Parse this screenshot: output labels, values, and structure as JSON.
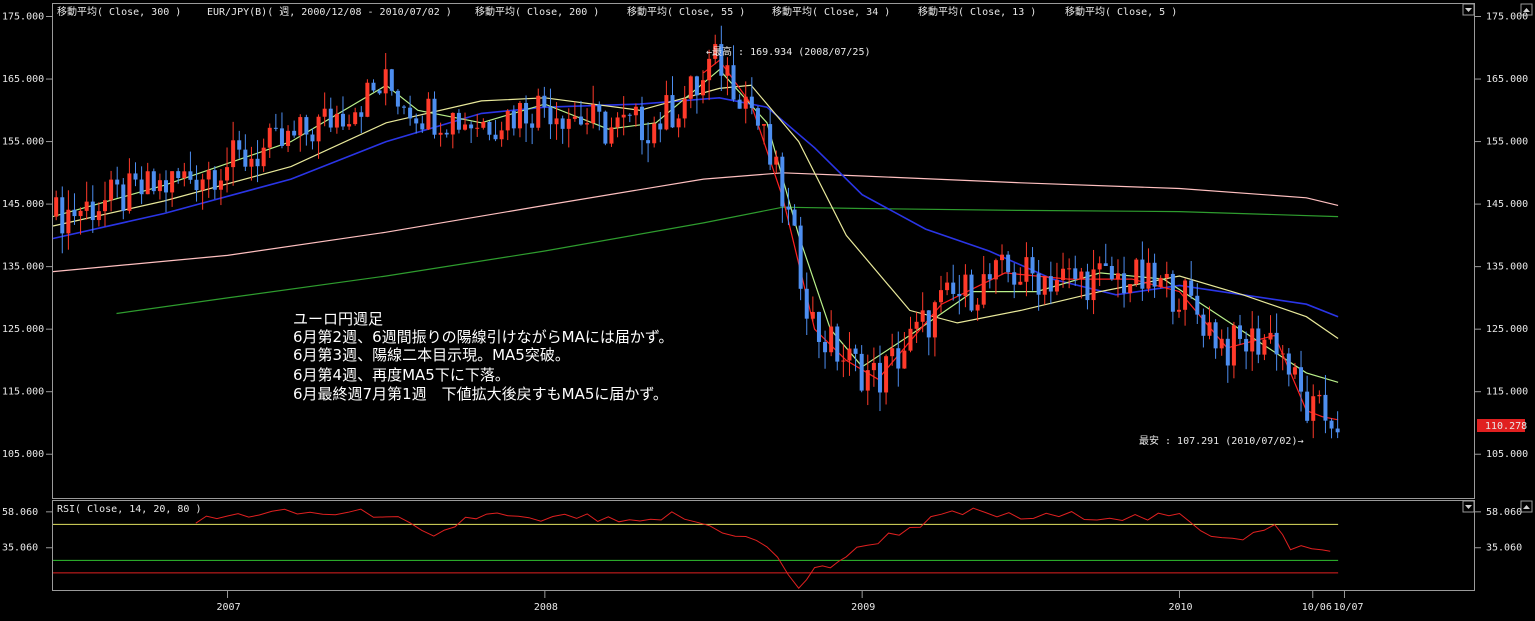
{
  "header": {
    "indicators": [
      "移動平均( Close, 300 )",
      "EUR/JPY(B)( 週, 2000/12/08 - 2010/07/02 )",
      "移動平均( Close, 200 )",
      "移動平均( Close, 55 )",
      "移動平均( Close, 34 )",
      "移動平均( Close, 13 )",
      "移動平均( Close, 5 )"
    ]
  },
  "annotations": {
    "high": "←最高 : 169.934 (2008/07/25)",
    "low": "最安 : 107.291 (2010/07/02)→",
    "last_price": "110.278",
    "note": [
      "ユーロ円週足",
      "6月第2週、6週間振りの陽線引けながらMAには届かず。",
      "6月第3週、陽線二本目示現。MA5突破。",
      "6月第4週、再度MA5下に下落。",
      "6月最終週7月第1週　下値拡大後戻すもMA5に届かず。"
    ]
  },
  "rsi": {
    "title": "RSI( Close, 14, 20, 80 )",
    "ticks": [
      "58.060",
      "35.060"
    ]
  },
  "colors": {
    "ma300": "#ffc0c0",
    "ma200": "#2e9c2e",
    "ma55": "#2a35e6",
    "ma34": "#e8e89a",
    "ma13": "#b9f08a",
    "ma5": "#ff2020",
    "up": "#ff3a2a",
    "down": "#4d8ef0",
    "rsi": "#e02020",
    "rsi_high": "#e0e060",
    "rsi_mid": "#30c030",
    "rsi_low": "#e02020"
  },
  "chart_data": [
    {
      "type": "candlestick",
      "x_labels": [
        "2007",
        "2008",
        "2009",
        "2010",
        "10/06",
        "10/07"
      ],
      "y_ticks": [
        "175.000",
        "165.000",
        "155.000",
        "145.000",
        "135.000",
        "125.000",
        "115.000",
        "105.000"
      ],
      "ylim": [
        98,
        177
      ],
      "high": 169.934,
      "low": 107.291,
      "last": 110.278,
      "series": [
        {
          "name": "移動平均( Close, 300 )",
          "x": [
            2006.45,
            2007.0,
            2007.5,
            2008.0,
            2008.5,
            2008.75,
            2009.0,
            2009.5,
            2010.0,
            2010.4,
            2010.5
          ],
          "values": [
            134.2,
            136.8,
            140.5,
            144.8,
            149.0,
            150.0,
            149.5,
            148.4,
            147.5,
            146.0,
            144.8
          ]
        },
        {
          "name": "移動平均( Close, 200 )",
          "x": [
            2006.65,
            2007.0,
            2007.5,
            2008.0,
            2008.5,
            2008.75,
            2009.0,
            2009.5,
            2010.0,
            2010.5
          ],
          "values": [
            127.5,
            130.0,
            133.5,
            137.5,
            142.0,
            144.5,
            144.3,
            144.0,
            143.8,
            143.0
          ]
        },
        {
          "name": "移動平均( Close, 55 )",
          "x": [
            2006.45,
            2006.8,
            2007.2,
            2007.5,
            2007.8,
            2008.0,
            2008.3,
            2008.55,
            2008.7,
            2008.85,
            2009.0,
            2009.2,
            2009.4,
            2009.6,
            2009.8,
            2010.0,
            2010.2,
            2010.4,
            2010.5
          ],
          "values": [
            139.5,
            143.5,
            149.0,
            155.0,
            159.5,
            160.5,
            161.0,
            162.0,
            160.5,
            154.0,
            146.5,
            141.0,
            137.5,
            133.0,
            130.5,
            132.0,
            130.5,
            129.0,
            127.0
          ]
        },
        {
          "name": "移動平均( Close, 34 )",
          "x": [
            2006.45,
            2006.8,
            2007.2,
            2007.5,
            2007.8,
            2008.0,
            2008.3,
            2008.55,
            2008.65,
            2008.8,
            2008.95,
            2009.15,
            2009.3,
            2009.5,
            2009.75,
            2010.0,
            2010.2,
            2010.4,
            2010.5
          ],
          "values": [
            141.5,
            145.5,
            151.0,
            158.0,
            161.5,
            162.0,
            160.0,
            163.5,
            164.0,
            155.0,
            140.0,
            128.0,
            126.0,
            128.0,
            131.0,
            133.5,
            130.5,
            127.0,
            123.5
          ]
        },
        {
          "name": "移動平均( Close, 13 )",
          "x": [
            2006.45,
            2006.8,
            2007.2,
            2007.5,
            2007.6,
            2007.8,
            2008.0,
            2008.2,
            2008.35,
            2008.55,
            2008.7,
            2008.8,
            2008.9,
            2009.0,
            2009.15,
            2009.35,
            2009.55,
            2009.75,
            2009.95,
            2010.1,
            2010.25,
            2010.4,
            2010.5
          ],
          "values": [
            143.0,
            148.0,
            155.0,
            164.0,
            160.0,
            158.0,
            161.0,
            157.0,
            158.0,
            166.5,
            158.0,
            140.0,
            125.0,
            119.0,
            124.0,
            131.0,
            131.0,
            134.0,
            133.0,
            128.0,
            123.0,
            118.0,
            116.5
          ]
        },
        {
          "name": "移動平均( Close, 5 )",
          "x": [
            2008.5,
            2008.55,
            2008.65,
            2008.75,
            2008.85,
            2008.95,
            2009.05,
            2009.25,
            2009.45,
            2009.65,
            2009.85,
            2010.0,
            2010.15,
            2010.3,
            2010.4,
            2010.45,
            2010.5
          ],
          "values": [
            166.0,
            168.0,
            161.0,
            146.0,
            125.0,
            120.0,
            117.0,
            129.0,
            134.0,
            133.0,
            133.0,
            131.0,
            122.0,
            124.0,
            112.0,
            111.0,
            110.5
          ]
        }
      ]
    },
    {
      "type": "line",
      "title": "RSI( Close, 14, 20, 80 )",
      "y_ticks": [
        "58.060",
        "35.060"
      ],
      "ylim": [
        8,
        65
      ],
      "levels": [
        80,
        20
      ],
      "series": [
        {
          "name": "RSI( Close, 14, 20, 80 )",
          "x": [
            2006.9,
            2007.0,
            2007.1,
            2007.5,
            2007.65,
            2007.75,
            2007.85,
            2007.95,
            2008.1,
            2008.2,
            2008.3,
            2008.4,
            2008.6,
            2008.7,
            2008.8,
            2008.85,
            2008.9,
            2008.95,
            2009.05,
            2009.15,
            2009.25,
            2009.35,
            2009.5,
            2009.7,
            2009.9,
            2010.0,
            2010.1,
            2010.2,
            2010.3,
            2010.35,
            2010.45,
            2010.5
          ],
          "values": [
            52,
            55,
            57,
            57,
            40,
            54,
            56,
            52,
            55,
            52,
            50,
            56,
            44,
            36,
            10,
            20,
            24,
            30,
            40,
            48,
            55,
            58,
            54,
            56,
            54,
            55,
            44,
            42,
            48,
            36,
            33,
            33
          ]
        }
      ]
    }
  ]
}
